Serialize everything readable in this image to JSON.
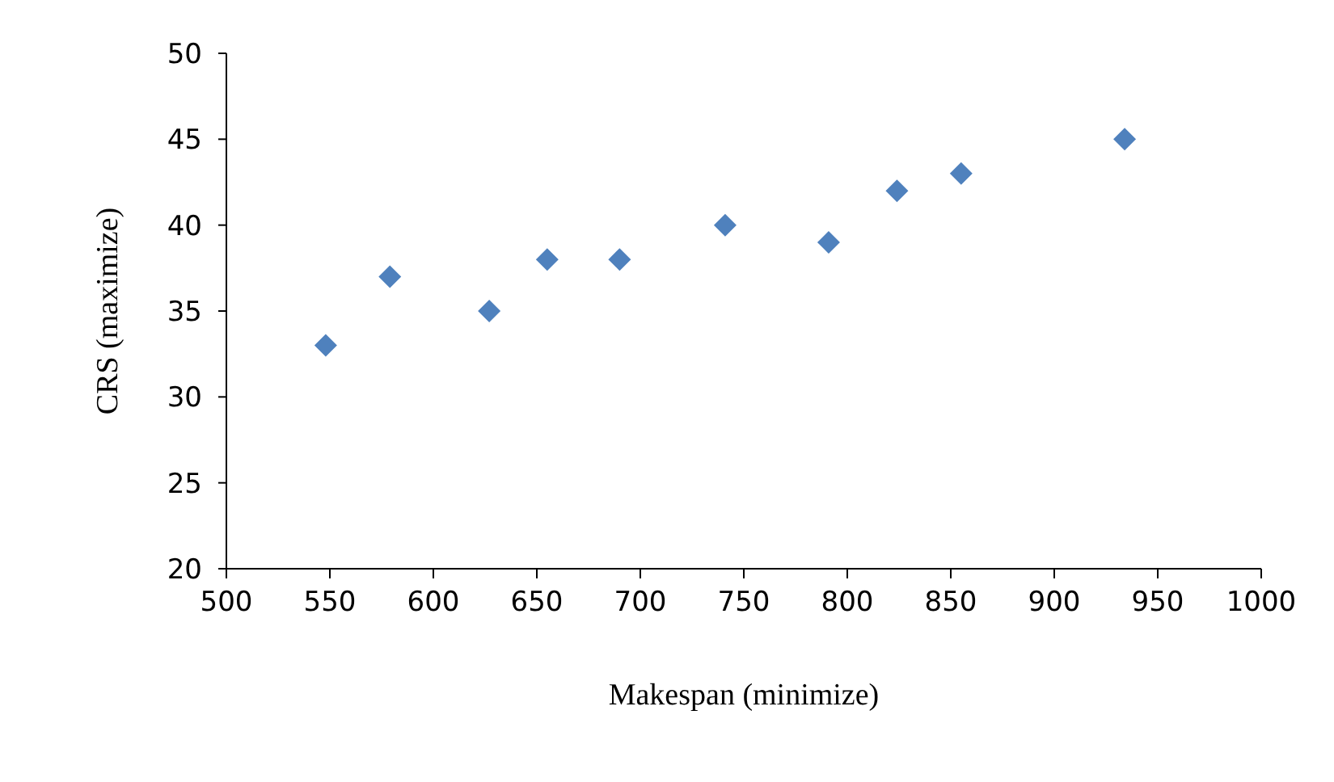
{
  "chart_data": {
    "type": "scatter",
    "xlabel": "Makespan (minimize)",
    "ylabel": "CRS (maximize)",
    "x": [
      548,
      579,
      627,
      655,
      690,
      741,
      791,
      824,
      855,
      934
    ],
    "series": [
      {
        "color": "#4f81bd",
        "values": [
          33,
          37,
          35,
          38,
          38,
          40,
          39,
          42,
          43,
          45
        ]
      }
    ],
    "xlim": [
      500,
      1000
    ],
    "xticks": [
      500,
      550,
      600,
      650,
      700,
      750,
      800,
      850,
      900,
      950,
      1000
    ],
    "ylim": [
      20,
      50
    ],
    "yticks": [
      20,
      25,
      30,
      35,
      40,
      45,
      50
    ],
    "marker": "diamond",
    "grid": false,
    "legend": false
  }
}
